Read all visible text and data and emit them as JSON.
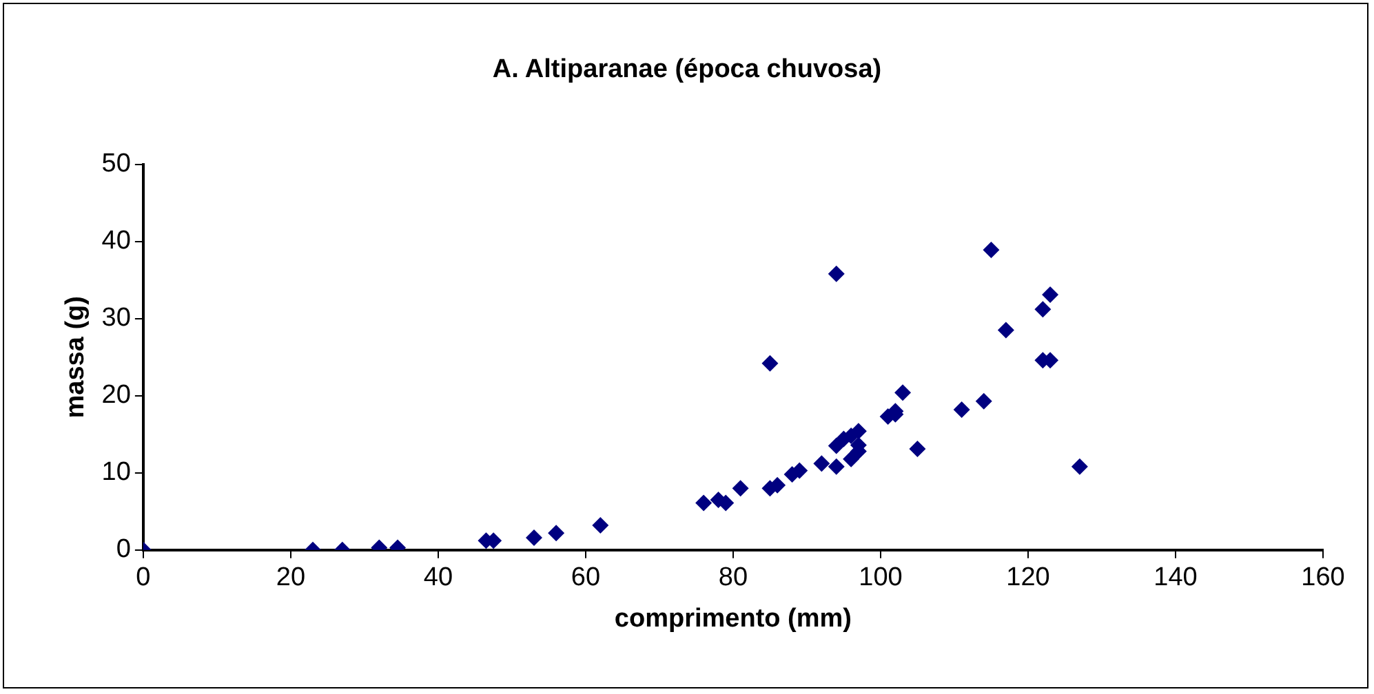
{
  "chart_data": {
    "type": "scatter",
    "title": "A. Altiparanae (época chuvosa)",
    "xlabel": "comprimento (mm)",
    "ylabel": "massa (g)",
    "x": [
      0,
      23,
      27,
      32,
      34.5,
      46.5,
      47.5,
      53,
      56,
      62,
      76,
      78,
      79,
      81,
      85,
      85,
      86,
      88,
      89,
      92,
      94,
      94,
      94,
      95,
      96,
      96,
      97,
      97,
      97,
      101,
      102,
      102,
      103,
      105,
      111,
      114,
      115,
      117,
      122,
      122,
      123,
      123,
      127
    ],
    "series": [
      {
        "color": "#000080",
        "values": [
          0,
          0,
          0,
          0.3,
          0.3,
          1.2,
          1.2,
          1.6,
          2.2,
          3.2,
          6.1,
          6.5,
          6.1,
          8,
          24.2,
          8,
          8.4,
          9.8,
          10.3,
          11.2,
          10.8,
          13.5,
          35.8,
          14.4,
          11.8,
          14.8,
          12.8,
          13.6,
          15.4,
          17.3,
          18,
          17.6,
          20.4,
          13.1,
          18.2,
          19.3,
          38.9,
          28.5,
          31.2,
          24.6,
          33.1,
          24.6,
          10.8
        ]
      }
    ],
    "xlim": [
      0,
      160
    ],
    "xticks": [
      0,
      20,
      40,
      60,
      80,
      100,
      120,
      140,
      160
    ],
    "ylim": [
      0,
      50
    ],
    "yticks": [
      0,
      10,
      20,
      30,
      40,
      50
    ],
    "grid": false,
    "legend": false,
    "marker": "diamond"
  }
}
